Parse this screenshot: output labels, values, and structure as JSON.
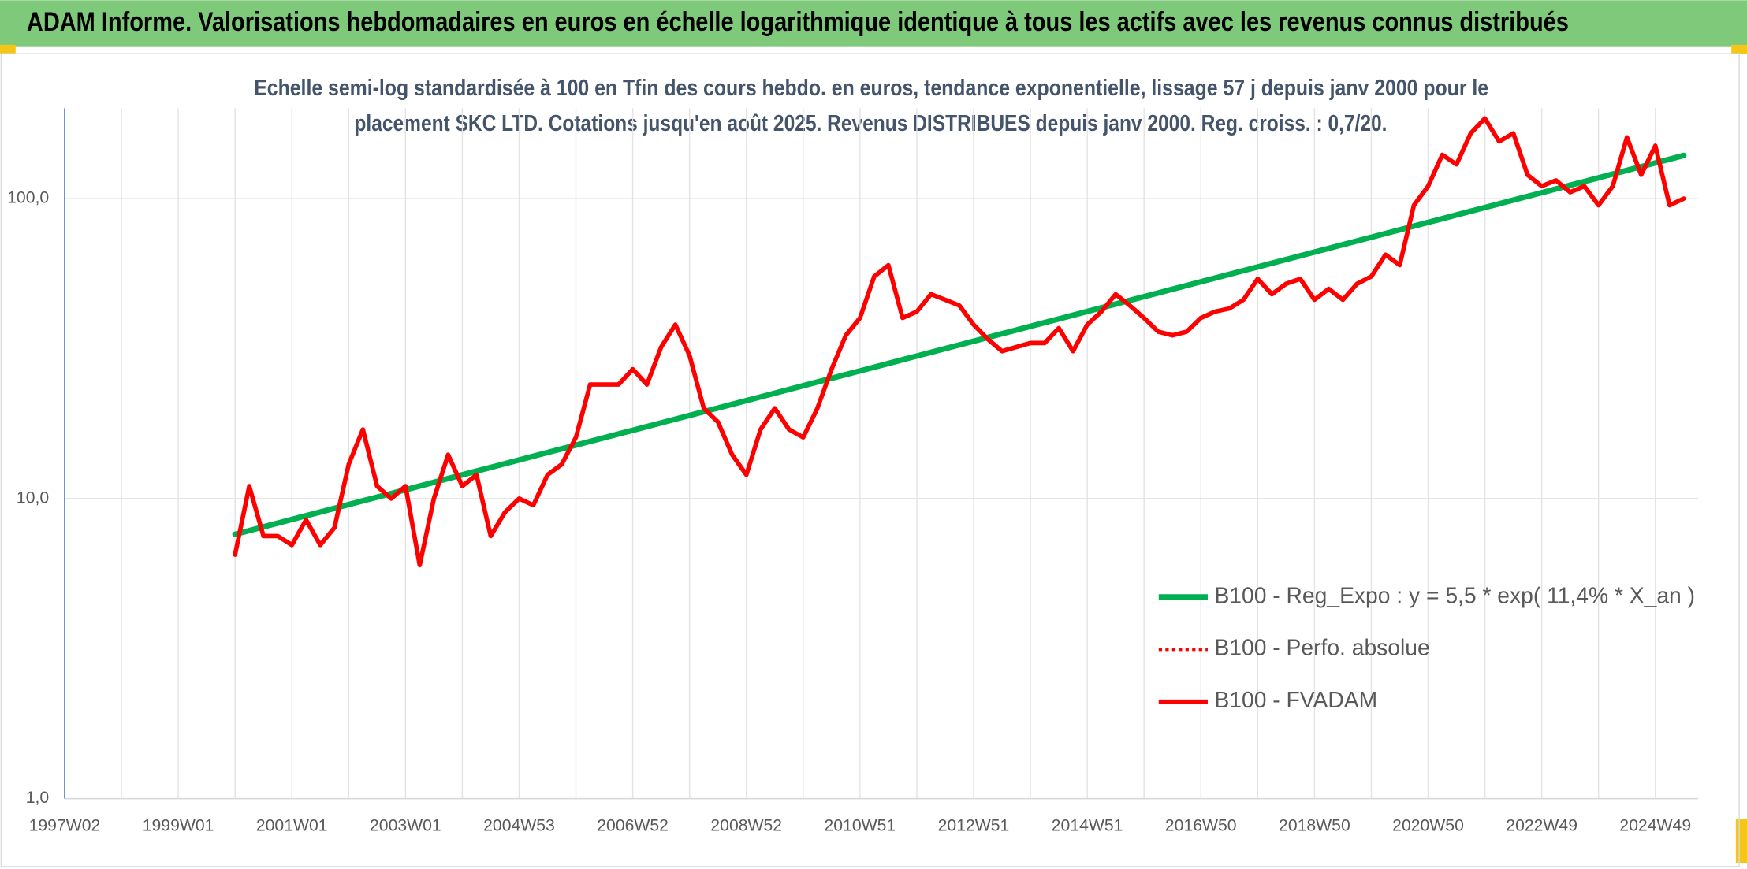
{
  "chart_data": {
    "type": "line",
    "title": "ADAM Informe. Valorisations hebdomadaires en euros en échelle logarithmique identique à tous les actifs avec les revenus connus distribués",
    "subtitle": [
      "Echelle semi-log standardisée à 100 en Tfin des cours hebdo. en euros, tendance exponentielle, lissage 57 j depuis janv 2000 pour le",
      "placement SKC LTD. Cotations jusqu'en août 2025. Revenus DISTRIBUES depuis janv 2000. Reg. croiss. : 0,7/20."
    ],
    "categories": [
      "1997W02",
      null,
      null,
      null,
      null,
      null,
      null,
      null,
      "1999W01",
      null,
      null,
      null,
      null,
      null,
      null,
      null,
      "2001W01",
      null,
      null,
      null,
      null,
      null,
      null,
      null,
      "2003W01",
      null,
      null,
      null,
      null,
      null,
      null,
      null,
      "2004W53",
      null,
      null,
      null,
      null,
      null,
      null,
      null,
      "2006W52",
      null,
      null,
      null,
      null,
      null,
      null,
      null,
      "2008W52",
      null,
      null,
      null,
      null,
      null,
      null,
      null,
      "2010W51",
      null,
      null,
      null,
      null,
      null,
      null,
      null,
      "2012W51",
      null,
      null,
      null,
      null,
      null,
      null,
      null,
      "2014W51",
      null,
      null,
      null,
      null,
      null,
      null,
      null,
      "2016W50",
      null,
      null,
      null,
      null,
      null,
      null,
      null,
      "2018W50",
      null,
      null,
      null,
      null,
      null,
      null,
      null,
      "2020W50",
      null,
      null,
      null,
      null,
      null,
      null,
      null,
      "2022W49",
      null,
      null,
      null,
      null,
      null,
      null,
      null,
      "2024W49",
      null,
      null
    ],
    "log_scale": true,
    "ylim": [
      1,
      200
    ],
    "yticks": [
      {
        "value": 1,
        "label": "1,0"
      },
      {
        "value": 10,
        "label": "10,0"
      },
      {
        "value": 100,
        "label": "100,0"
      }
    ],
    "grid": true,
    "legend": "lower right",
    "series": [
      {
        "name": "B100 - Reg_Expo : y = 5,5 * exp( 11,4% *  X_an )",
        "color": "#00b050",
        "style": "solid",
        "values": [
          null,
          null,
          null,
          null,
          null,
          null,
          null,
          null,
          null,
          null,
          null,
          null,
          7.6,
          7.82,
          8.05,
          8.28,
          8.52,
          8.77,
          9.02,
          9.28,
          9.55,
          9.83,
          10.11,
          10.4,
          10.7,
          11.01,
          11.33,
          11.66,
          12.0,
          12.35,
          12.7,
          13.07,
          13.45,
          13.84,
          14.24,
          14.65,
          15.07,
          15.51,
          15.96,
          16.42,
          16.89,
          17.38,
          17.88,
          18.4,
          18.93,
          19.48,
          20.04,
          20.62,
          21.22,
          21.83,
          22.46,
          23.11,
          23.78,
          24.47,
          25.18,
          25.9,
          26.65,
          27.42,
          28.21,
          29.03,
          29.87,
          30.73,
          31.62,
          32.53,
          33.47,
          34.44,
          35.44,
          36.46,
          37.51,
          38.6,
          39.71,
          40.86,
          42.04,
          43.26,
          44.51,
          45.8,
          47.12,
          48.48,
          49.88,
          51.32,
          52.81,
          54.33,
          55.9,
          57.52,
          59.18,
          60.89,
          62.65,
          64.46,
          66.33,
          68.24,
          70.22,
          72.25,
          74.33,
          76.48,
          78.7,
          80.97,
          83.31,
          85.72,
          88.2,
          90.75,
          93.38,
          96.08,
          98.86,
          101.7,
          104.6,
          107.7,
          110.8,
          114.0,
          117.3,
          120.7,
          124.2,
          127.8,
          131.5,
          135.3,
          139.2
        ]
      },
      {
        "name": "B100 - Perfo. absolue",
        "color": "#ff0000",
        "style": "dotted",
        "values": [
          null,
          null,
          null,
          null,
          null,
          null,
          null,
          null,
          null,
          null,
          null,
          null,
          6.5,
          11,
          7.5,
          7.5,
          7,
          8.5,
          7,
          8,
          13,
          17,
          11,
          10,
          11,
          6,
          10,
          14,
          11,
          12,
          7.5,
          9,
          10,
          9.5,
          12,
          13,
          16,
          24,
          24,
          24,
          27,
          24,
          32,
          38,
          30,
          20,
          18,
          14,
          12,
          17,
          20,
          17,
          16,
          20,
          27,
          35,
          40,
          55,
          60,
          40,
          42,
          48,
          46,
          44,
          38,
          34,
          31,
          32,
          33,
          33,
          37,
          31,
          38,
          42,
          48,
          44,
          40,
          36,
          35,
          36,
          40,
          42,
          43,
          46,
          54,
          48,
          52,
          54,
          46,
          50,
          46,
          52,
          55,
          65,
          60,
          95,
          110,
          140,
          130,
          165,
          185,
          155,
          165,
          120,
          110,
          115,
          105,
          110,
          95,
          110,
          160,
          120,
          150,
          95,
          100
        ]
      },
      {
        "name": "B100 - FVADAM",
        "color": "#ff0000",
        "style": "solid",
        "values": [
          null,
          null,
          null,
          null,
          null,
          null,
          null,
          null,
          null,
          null,
          null,
          null,
          6.5,
          11,
          7.5,
          7.5,
          7,
          8.5,
          7,
          8,
          13,
          17,
          11,
          10,
          11,
          6,
          10,
          14,
          11,
          12,
          7.5,
          9,
          10,
          9.5,
          12,
          13,
          16,
          24,
          24,
          24,
          27,
          24,
          32,
          38,
          30,
          20,
          18,
          14,
          12,
          17,
          20,
          17,
          16,
          20,
          27,
          35,
          40,
          55,
          60,
          40,
          42,
          48,
          46,
          44,
          38,
          34,
          31,
          32,
          33,
          33,
          37,
          31,
          38,
          42,
          48,
          44,
          40,
          36,
          35,
          36,
          40,
          42,
          43,
          46,
          54,
          48,
          52,
          54,
          46,
          50,
          46,
          52,
          55,
          65,
          60,
          95,
          110,
          140,
          130,
          165,
          185,
          155,
          165,
          120,
          110,
          115,
          105,
          110,
          95,
          110,
          160,
          120,
          150,
          95,
          100
        ]
      }
    ]
  }
}
